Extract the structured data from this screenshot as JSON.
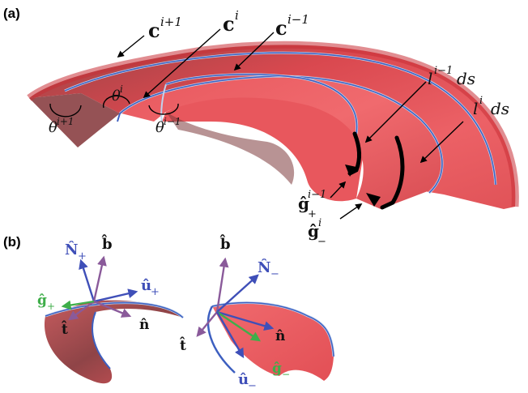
{
  "panel_a": {
    "label": "(a)",
    "curves": {
      "c_next": "c",
      "c_next_sup": "i+1",
      "c_cur": "c",
      "c_cur_sup": "i",
      "c_prev": "c",
      "c_prev_sup": "i−1"
    },
    "angles": {
      "theta_next": "θ",
      "theta_next_sup": "i+1",
      "theta_cur": "θ",
      "theta_cur_sup": "i",
      "theta_prev": "θ",
      "theta_prev_sup": "i−1"
    },
    "lengths": {
      "l_prev": "l",
      "l_prev_sup": "i−1",
      "l_prev_ds": "ds",
      "l_cur": "l",
      "l_cur_sup": "i",
      "l_cur_ds": "ds"
    },
    "vectors": {
      "g_plus": "ĝ",
      "g_plus_sub": "+",
      "g_plus_sup": "i−1",
      "g_minus": "ĝ",
      "g_minus_sub": "−",
      "g_minus_sup": "i"
    }
  },
  "panel_b": {
    "label": "(b)",
    "left": {
      "N": "N̂",
      "N_sub": "+",
      "b": "b̂",
      "u": "û",
      "u_sub": "+",
      "g": "ĝ",
      "g_sub": "+",
      "t": "t̂",
      "n": "n̂"
    },
    "right": {
      "b": "b̂",
      "N": "N̂",
      "N_sub": "−",
      "n": "n̂",
      "t": "t̂",
      "g": "ĝ",
      "g_sub": "−",
      "u": "û",
      "u_sub": "−"
    }
  },
  "colors": {
    "surface": "#e4545a",
    "surface_dark": "#8e3b3e",
    "edge_blue": "#3d5fc0",
    "arrow_blue": "#3f4fb8",
    "arrow_purple": "#8a5a9a",
    "green": "#3fae4a"
  }
}
